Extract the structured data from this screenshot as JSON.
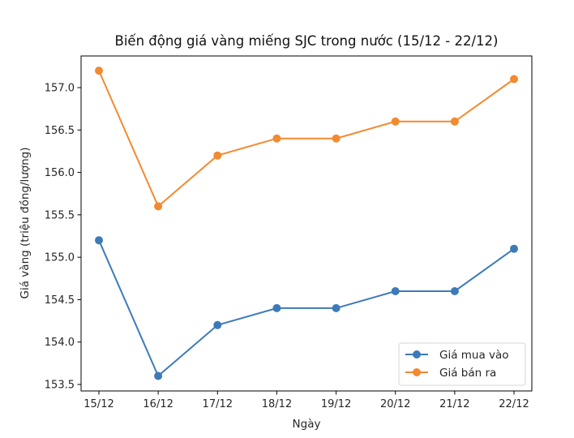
{
  "chart_data": {
    "type": "line",
    "title": "Biến động giá vàng miếng SJC trong nước (15/12 - 22/12)",
    "xlabel": "Ngày",
    "ylabel": "Giá vàng (triệu đồng/lượng)",
    "categories": [
      "15/12",
      "16/12",
      "17/12",
      "18/12",
      "19/12",
      "20/12",
      "21/12",
      "22/12"
    ],
    "series": [
      {
        "name": "Giá mua vào",
        "color": "#3d7ab8",
        "marker": "circle",
        "values": [
          155.2,
          153.6,
          154.2,
          154.4,
          154.4,
          154.6,
          154.6,
          155.1
        ]
      },
      {
        "name": "Giá bán ra",
        "color": "#f28a30",
        "marker": "circle",
        "values": [
          157.2,
          155.6,
          156.2,
          156.4,
          156.4,
          156.6,
          156.6,
          157.1
        ]
      }
    ],
    "yticks": [
      153.5,
      154.0,
      154.5,
      155.0,
      155.5,
      156.0,
      156.5,
      157.0
    ],
    "ytick_labels": [
      "153.5",
      "154.0",
      "154.5",
      "155.0",
      "155.5",
      "156.0",
      "156.5",
      "157.0"
    ],
    "ylim": [
      153.43,
      157.38
    ],
    "grid": false,
    "legend_position": "lower right"
  }
}
